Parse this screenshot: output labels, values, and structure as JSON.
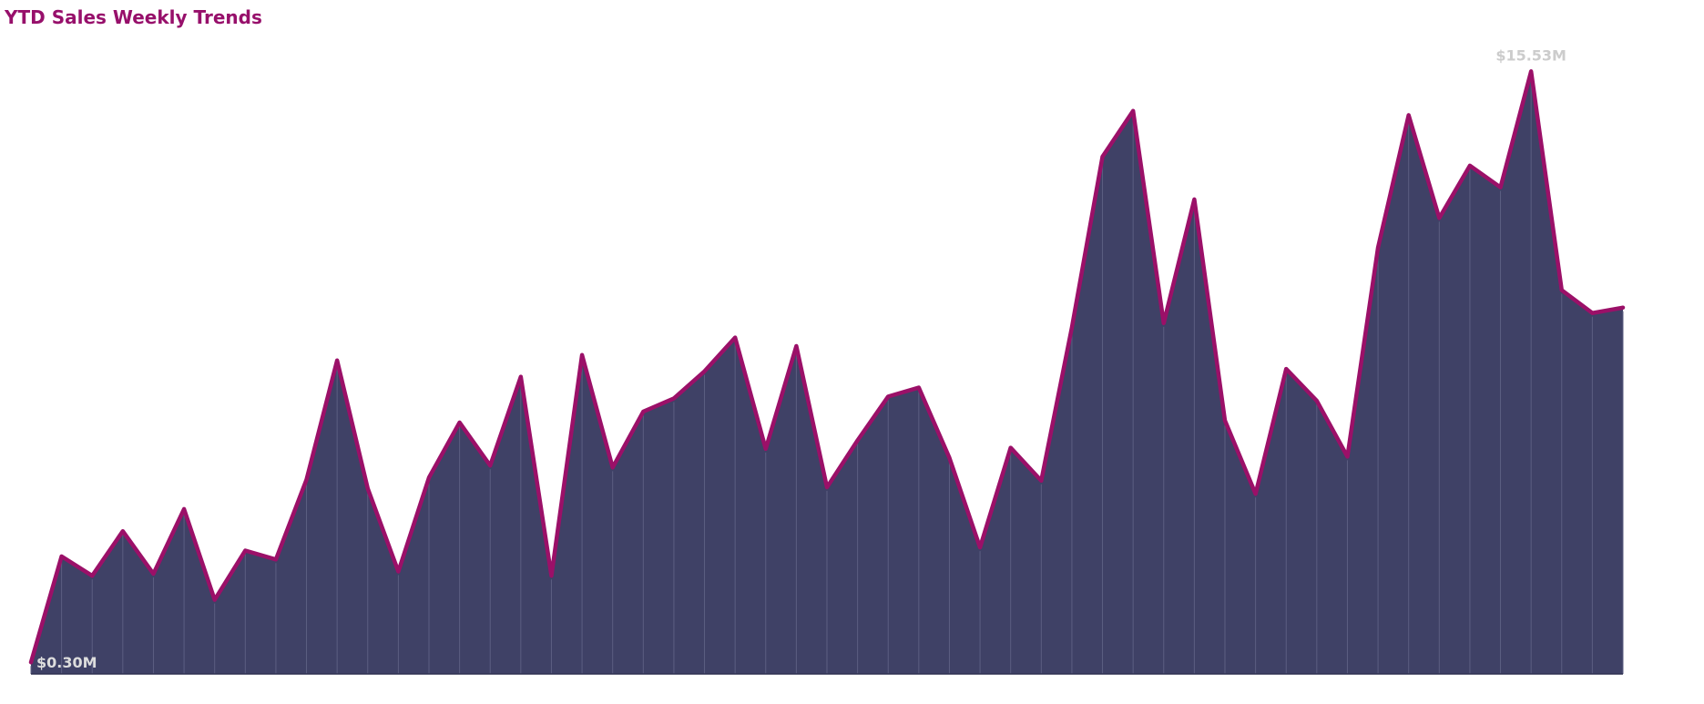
{
  "chart_data": {
    "type": "area",
    "title": "YTD Sales Weekly Trends",
    "x": [
      1,
      2,
      3,
      4,
      5,
      6,
      7,
      8,
      9,
      10,
      11,
      12,
      13,
      14,
      15,
      16,
      17,
      18,
      19,
      20,
      21,
      22,
      23,
      24,
      25,
      26,
      27,
      28,
      29,
      30,
      31,
      32,
      33,
      34,
      35,
      36,
      37,
      38,
      39,
      40,
      41,
      42,
      43,
      44,
      45,
      46,
      47,
      48,
      49,
      50,
      51,
      52,
      53
    ],
    "values": [
      0.3,
      3.03,
      2.53,
      3.68,
      2.58,
      4.25,
      1.91,
      3.18,
      2.95,
      5.01,
      8.08,
      4.78,
      2.64,
      5.06,
      6.48,
      5.37,
      7.66,
      2.53,
      8.22,
      5.32,
      6.76,
      7.1,
      7.8,
      8.67,
      5.8,
      8.45,
      4.81,
      6.02,
      7.15,
      7.38,
      5.57,
      3.26,
      5.83,
      4.98,
      8.93,
      13.33,
      14.51,
      9.04,
      12.23,
      6.53,
      4.64,
      7.86,
      7.04,
      5.6,
      10.99,
      14.4,
      11.75,
      13.1,
      12.54,
      15.53,
      9.89,
      9.3,
      9.44
    ],
    "color": "#9b1068",
    "fill": "#3f4166",
    "xlim": [
      1,
      53
    ],
    "ylim": [
      0,
      16.1
    ],
    "annotations": [
      {
        "index": 49,
        "label": "$15.53M",
        "color": "#cccccc"
      },
      {
        "index": 0,
        "label": "$0.30M",
        "color": "#dddddd"
      }
    ]
  }
}
